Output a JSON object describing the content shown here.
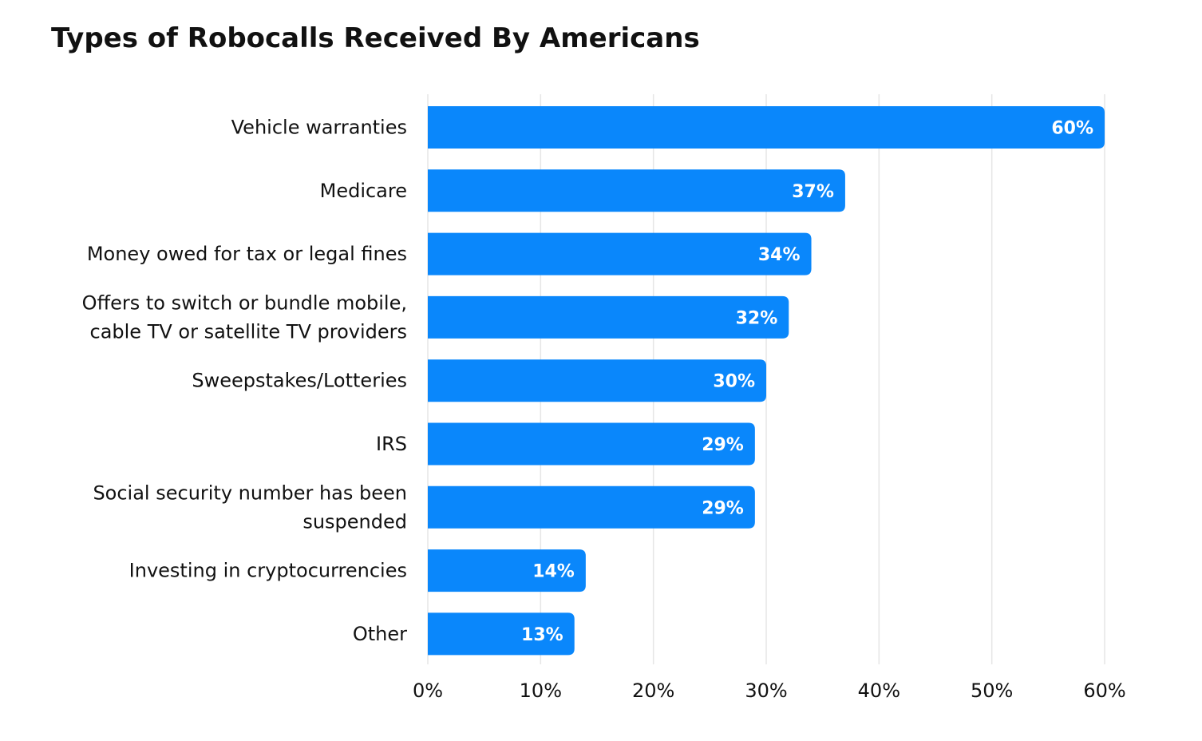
{
  "chart_data": {
    "type": "bar",
    "orientation": "horizontal",
    "title": "Types of Robocalls Received By Americans",
    "xlabel": "",
    "ylabel": "",
    "categories": [
      [
        "Vehicle warranties"
      ],
      [
        "Medicare"
      ],
      [
        "Money owed for tax or legal fines"
      ],
      [
        "Offers to switch or bundle mobile,",
        "cable TV or satellite TV providers"
      ],
      [
        "Sweepstakes/Lotteries"
      ],
      [
        "IRS"
      ],
      [
        "Social security number has been",
        "suspended"
      ],
      [
        "Investing in cryptocurrencies"
      ],
      [
        "Other"
      ]
    ],
    "values": [
      60,
      37,
      34,
      32,
      30,
      29,
      29,
      14,
      13
    ],
    "value_labels": [
      "60%",
      "37%",
      "34%",
      "32%",
      "30%",
      "29%",
      "29%",
      "14%",
      "13%"
    ],
    "xlim": [
      0,
      60
    ],
    "x_ticks": [
      0,
      10,
      20,
      30,
      40,
      50,
      60
    ],
    "x_tick_labels": [
      "0%",
      "10%",
      "20%",
      "30%",
      "40%",
      "50%",
      "60%"
    ],
    "grid": "vertical",
    "legend": "none",
    "bar_color": "#0a87fb"
  }
}
